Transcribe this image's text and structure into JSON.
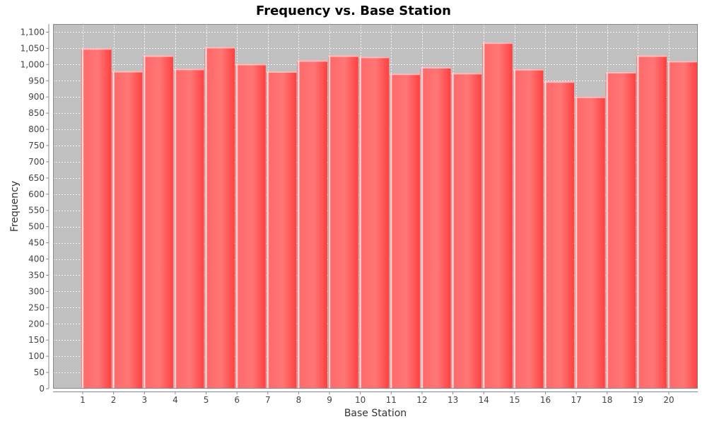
{
  "chart_data": {
    "type": "bar",
    "title": "Frequency vs. Base Station",
    "xlabel": "Base Station",
    "ylabel": "Frequency",
    "categories": [
      "1",
      "2",
      "3",
      "4",
      "5",
      "6",
      "7",
      "8",
      "9",
      "10",
      "11",
      "12",
      "13",
      "14",
      "15",
      "16",
      "17",
      "18",
      "19",
      "20"
    ],
    "values": [
      1050,
      980,
      1028,
      987,
      1054,
      1002,
      979,
      1013,
      1028,
      1024,
      972,
      992,
      974,
      1068,
      986,
      948,
      901,
      977,
      1028,
      1011
    ],
    "ylim": [
      0,
      1125
    ],
    "yticks": [
      0,
      50,
      100,
      150,
      200,
      250,
      300,
      350,
      400,
      450,
      500,
      550,
      600,
      650,
      700,
      750,
      800,
      850,
      900,
      950,
      1000,
      1050,
      1100
    ],
    "ytick_labels": [
      "0",
      "50",
      "100",
      "150",
      "200",
      "250",
      "300",
      "350",
      "400",
      "450",
      "500",
      "550",
      "600",
      "650",
      "700",
      "750",
      "800",
      "850",
      "900",
      "950",
      "1,000",
      "1,050",
      "1,100"
    ],
    "grid": true,
    "colors": {
      "plot_background": "#c0c0c0",
      "bar": "#ff5555",
      "bar_highlight": "#ffffff",
      "grid": "#ffffff"
    }
  }
}
